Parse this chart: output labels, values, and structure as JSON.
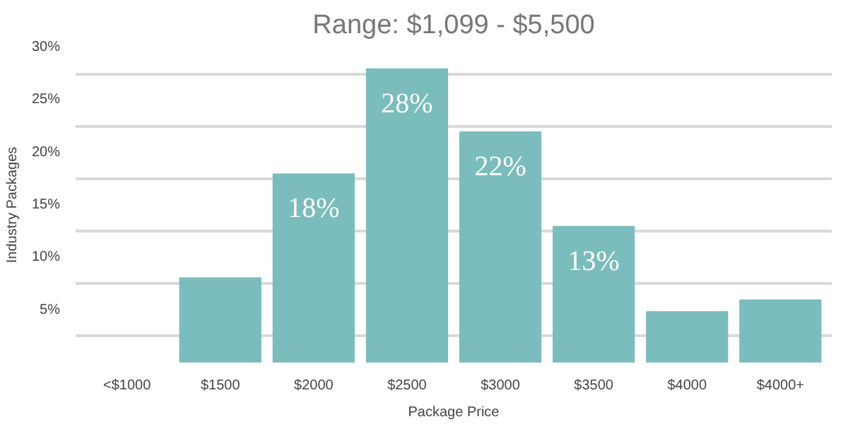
{
  "chart_data": {
    "type": "bar",
    "title": "Range: $1,099 - $5,500",
    "xlabel": "Package Price",
    "ylabel": "Industry Packages",
    "categories": [
      "<$1000",
      "$1500",
      "$2000",
      "$2500",
      "$3000",
      "$3500",
      "$4000",
      "$4000+"
    ],
    "values": [
      0,
      8.1,
      18,
      28,
      22,
      13,
      4.9,
      6.0
    ],
    "value_labels": [
      null,
      null,
      "18%",
      "28%",
      "22%",
      "13%",
      null,
      null
    ],
    "color": "#7bbcbc",
    "ylim": [
      0,
      30
    ],
    "yticks": [
      {
        "value": 2.5,
        "label": null
      },
      {
        "value": 5,
        "label": "5%"
      },
      {
        "value": 7.5,
        "label": null
      },
      {
        "value": 10,
        "label": "10%"
      },
      {
        "value": 12.5,
        "label": null
      },
      {
        "value": 15,
        "label": "15%"
      },
      {
        "value": 17.5,
        "label": null
      },
      {
        "value": 20,
        "label": "20%"
      },
      {
        "value": 22.5,
        "label": null
      },
      {
        "value": 25,
        "label": "25%"
      },
      {
        "value": 27.5,
        "label": null
      },
      {
        "value": 30,
        "label": "30%"
      }
    ],
    "grid": "y"
  }
}
